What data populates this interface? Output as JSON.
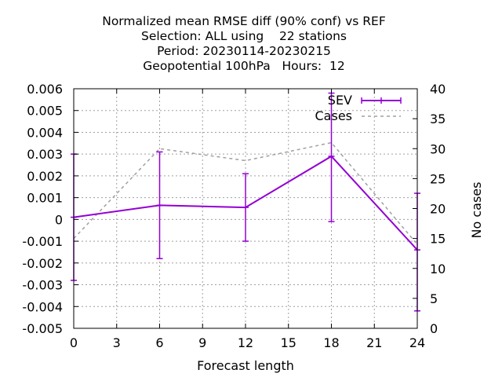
{
  "chart_data": {
    "type": "line",
    "title_lines": [
      "Normalized mean RMSE diff (90% conf) vs REF",
      "Selection: ALL using    22 stations",
      "Period: 20230114-20230215",
      "Geopotential 100hPa   Hours:  12"
    ],
    "xlabel": "Forecast length",
    "ylabel": "",
    "y2label": "No cases",
    "x": [
      0,
      6,
      12,
      18,
      24
    ],
    "xlim": [
      0,
      24
    ],
    "xticks": [
      0,
      3,
      6,
      9,
      12,
      15,
      18,
      21,
      24
    ],
    "ylim": [
      -0.005,
      0.006
    ],
    "yticks": [
      "-0.005",
      "-0.004",
      "-0.003",
      "-0.002",
      "-0.001",
      "0",
      "0.001",
      "0.002",
      "0.003",
      "0.004",
      "0.005",
      "0.006"
    ],
    "y2lim": [
      0,
      40
    ],
    "y2ticks": [
      0,
      5,
      10,
      15,
      20,
      25,
      30,
      35,
      40
    ],
    "grid": true,
    "legend_position": "top-right",
    "series": [
      {
        "name": "SEV",
        "axis": "y",
        "color": "#9400d3",
        "style": "solid-with-errorbars",
        "values": [
          0.0001,
          0.00065,
          0.00055,
          0.0029,
          -0.0014
        ],
        "err_low": [
          -0.0028,
          -0.0018,
          -0.001,
          -0.0001,
          -0.0042
        ],
        "err_high": [
          0.003,
          0.0031,
          0.0021,
          0.0058,
          0.0012
        ]
      },
      {
        "name": "Cases",
        "axis": "y2",
        "color": "#a0a0a0",
        "style": "dashed",
        "values": [
          15,
          30,
          28,
          31,
          14
        ]
      }
    ]
  }
}
